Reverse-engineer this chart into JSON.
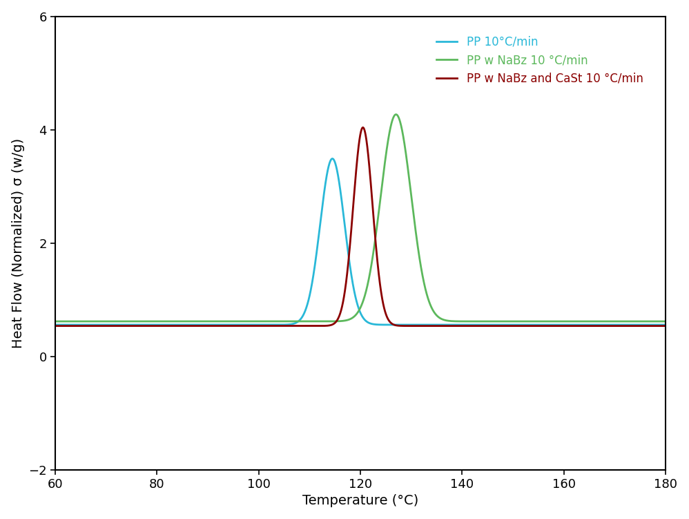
{
  "title": "",
  "xlabel": "Temperature (°C)",
  "ylabel": "Heat Flow (Normalized) σ (w/g)",
  "xlim": [
    60,
    180
  ],
  "ylim": [
    -2,
    6
  ],
  "yticks": [
    -2,
    0,
    2,
    4,
    6
  ],
  "xticks": [
    60,
    80,
    100,
    120,
    140,
    160,
    180
  ],
  "series": [
    {
      "label": "PP 10°C/min",
      "color": "#29B8D8",
      "peak": 114.5,
      "amplitude": 2.93,
      "sigma": 2.4,
      "baseline": 0.56
    },
    {
      "label": "PP w NaBz 10 °C/min",
      "color": "#5CB85C",
      "peak": 127.0,
      "amplitude": 3.65,
      "sigma": 3.0,
      "baseline": 0.62
    },
    {
      "label": "PP w NaBz and CaSt 10 °C/min",
      "color": "#8B0000",
      "peak": 120.5,
      "amplitude": 3.5,
      "sigma": 1.9,
      "baseline": 0.54
    }
  ],
  "background_color": "#ffffff",
  "fontsize_labels": 14,
  "fontsize_ticks": 13,
  "fontsize_legend": 12,
  "linewidth": 2.0
}
